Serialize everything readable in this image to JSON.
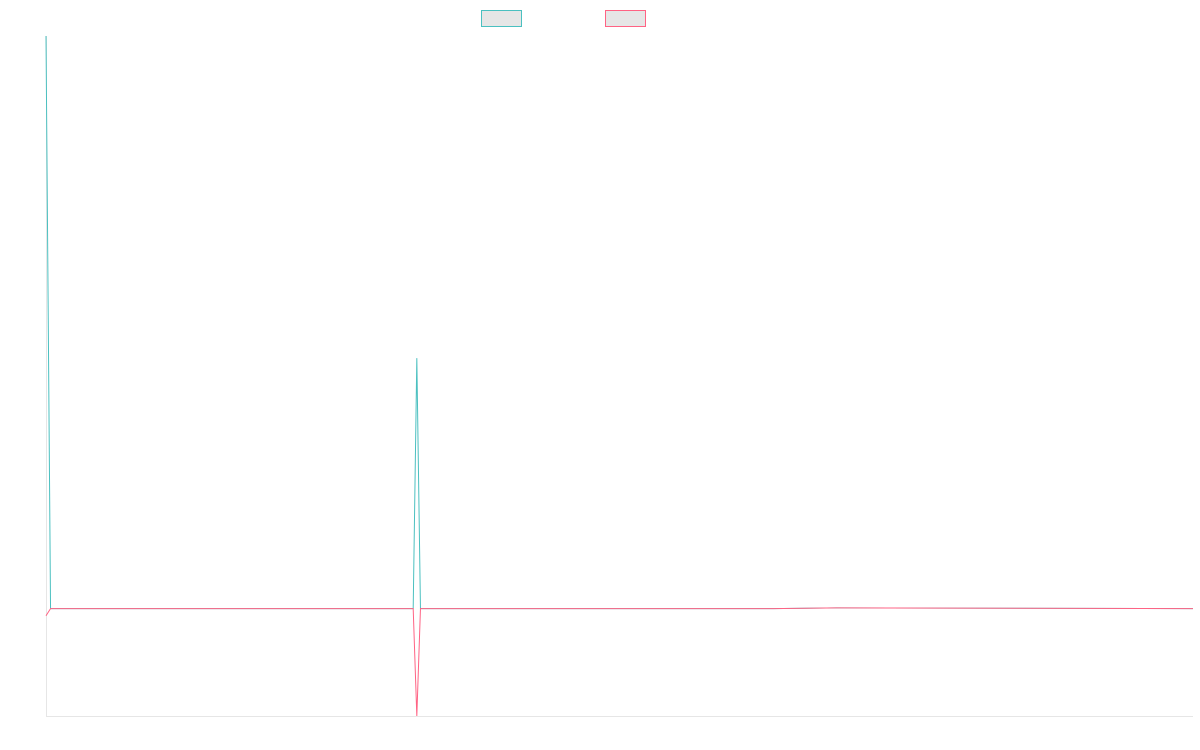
{
  "chart_data": {
    "type": "line",
    "title": "",
    "xlabel": "",
    "ylabel": "",
    "ylim": [
      -1.5,
      8
    ],
    "grid": false,
    "legend": "top-center",
    "x": [
      0,
      0.5,
      40,
      40.4,
      40.8,
      41.2,
      41.6,
      80,
      87,
      126.2
    ],
    "series": [
      {
        "name": "",
        "color": "#4bc0c0",
        "values": [
          8,
          0,
          0,
          0,
          3.5,
          0,
          0,
          0,
          0.01,
          0
        ]
      },
      {
        "name": "",
        "color": "#ff6384",
        "values": [
          -0.1,
          0,
          0,
          0,
          -1.5,
          0,
          0,
          0,
          0.01,
          0
        ]
      }
    ]
  }
}
